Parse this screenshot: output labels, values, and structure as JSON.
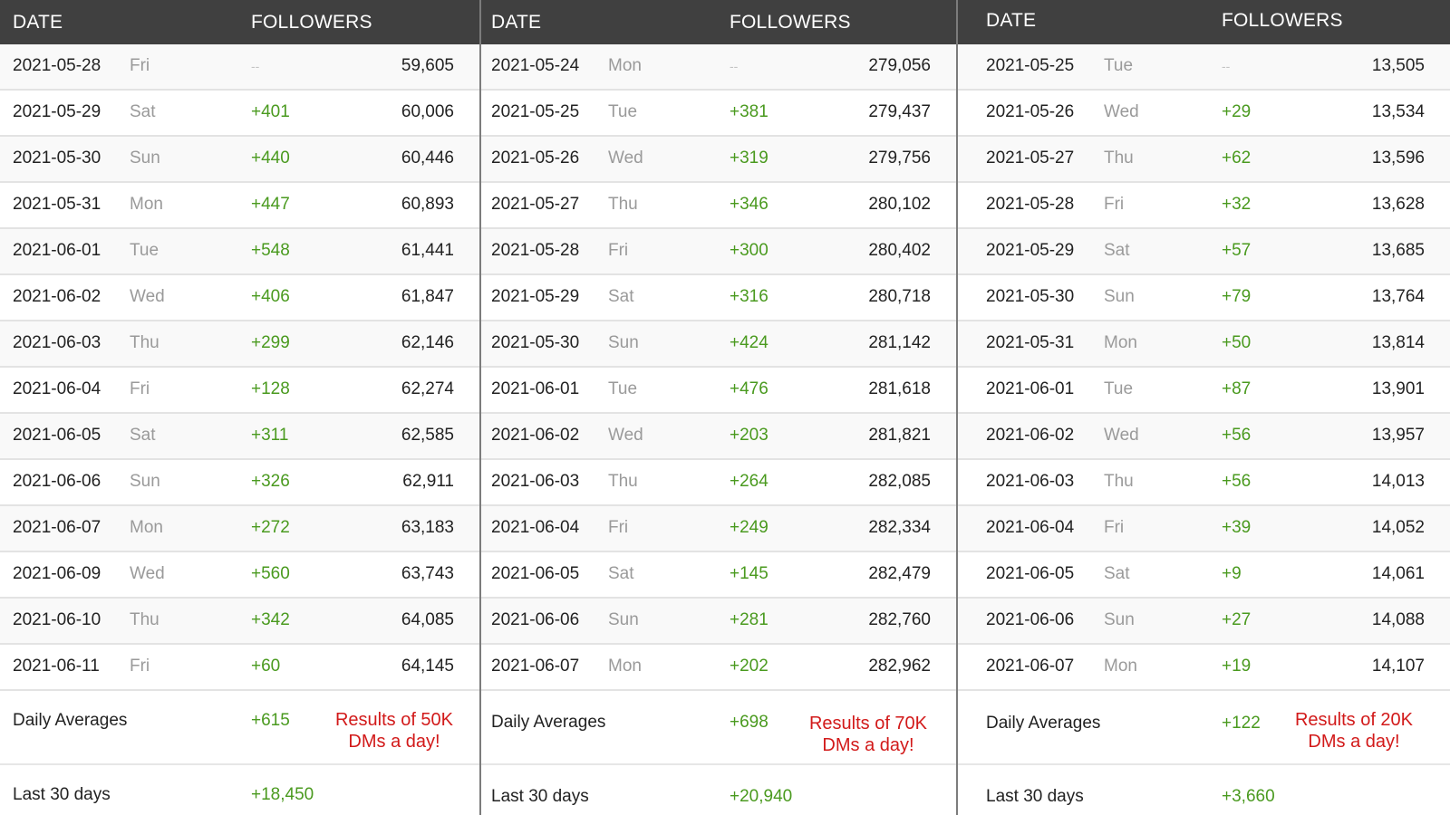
{
  "headers": {
    "date": "DATE",
    "followers": "FOLLOWERS"
  },
  "panels": [
    {
      "rows": [
        {
          "date": "2021-05-28",
          "day": "Fri",
          "change": "--",
          "total": "59,605"
        },
        {
          "date": "2021-05-29",
          "day": "Sat",
          "change": "+401",
          "total": "60,006"
        },
        {
          "date": "2021-05-30",
          "day": "Sun",
          "change": "+440",
          "total": "60,446"
        },
        {
          "date": "2021-05-31",
          "day": "Mon",
          "change": "+447",
          "total": "60,893"
        },
        {
          "date": "2021-06-01",
          "day": "Tue",
          "change": "+548",
          "total": "61,441"
        },
        {
          "date": "2021-06-02",
          "day": "Wed",
          "change": "+406",
          "total": "61,847"
        },
        {
          "date": "2021-06-03",
          "day": "Thu",
          "change": "+299",
          "total": "62,146"
        },
        {
          "date": "2021-06-04",
          "day": "Fri",
          "change": "+128",
          "total": "62,274"
        },
        {
          "date": "2021-06-05",
          "day": "Sat",
          "change": "+311",
          "total": "62,585"
        },
        {
          "date": "2021-06-06",
          "day": "Sun",
          "change": "+326",
          "total": "62,911"
        },
        {
          "date": "2021-06-07",
          "day": "Mon",
          "change": "+272",
          "total": "63,183"
        },
        {
          "date": "2021-06-09",
          "day": "Wed",
          "change": "+560",
          "total": "63,743"
        },
        {
          "date": "2021-06-10",
          "day": "Thu",
          "change": "+342",
          "total": "64,085"
        },
        {
          "date": "2021-06-11",
          "day": "Fri",
          "change": "+60",
          "total": "64,145"
        }
      ],
      "daily_averages_label": "Daily Averages",
      "daily_averages_value": "+615",
      "note_line1": "Results of 50K",
      "note_line2": "DMs a day!",
      "last30_label": "Last 30 days",
      "last30_value": "+18,450"
    },
    {
      "rows": [
        {
          "date": "2021-05-24",
          "day": "Mon",
          "change": "--",
          "total": "279,056"
        },
        {
          "date": "2021-05-25",
          "day": "Tue",
          "change": "+381",
          "total": "279,437"
        },
        {
          "date": "2021-05-26",
          "day": "Wed",
          "change": "+319",
          "total": "279,756"
        },
        {
          "date": "2021-05-27",
          "day": "Thu",
          "change": "+346",
          "total": "280,102"
        },
        {
          "date": "2021-05-28",
          "day": "Fri",
          "change": "+300",
          "total": "280,402"
        },
        {
          "date": "2021-05-29",
          "day": "Sat",
          "change": "+316",
          "total": "280,718"
        },
        {
          "date": "2021-05-30",
          "day": "Sun",
          "change": "+424",
          "total": "281,142"
        },
        {
          "date": "2021-06-01",
          "day": "Tue",
          "change": "+476",
          "total": "281,618"
        },
        {
          "date": "2021-06-02",
          "day": "Wed",
          "change": "+203",
          "total": "281,821"
        },
        {
          "date": "2021-06-03",
          "day": "Thu",
          "change": "+264",
          "total": "282,085"
        },
        {
          "date": "2021-06-04",
          "day": "Fri",
          "change": "+249",
          "total": "282,334"
        },
        {
          "date": "2021-06-05",
          "day": "Sat",
          "change": "+145",
          "total": "282,479"
        },
        {
          "date": "2021-06-06",
          "day": "Sun",
          "change": "+281",
          "total": "282,760"
        },
        {
          "date": "2021-06-07",
          "day": "Mon",
          "change": "+202",
          "total": "282,962"
        }
      ],
      "daily_averages_label": "Daily Averages",
      "daily_averages_value": "+698",
      "note_line1": "Results of 70K",
      "note_line2": "DMs a day!",
      "last30_label": "Last 30 days",
      "last30_value": "+20,940"
    },
    {
      "rows": [
        {
          "date": "2021-05-25",
          "day": "Tue",
          "change": "--",
          "total": "13,505"
        },
        {
          "date": "2021-05-26",
          "day": "Wed",
          "change": "+29",
          "total": "13,534"
        },
        {
          "date": "2021-05-27",
          "day": "Thu",
          "change": "+62",
          "total": "13,596"
        },
        {
          "date": "2021-05-28",
          "day": "Fri",
          "change": "+32",
          "total": "13,628"
        },
        {
          "date": "2021-05-29",
          "day": "Sat",
          "change": "+57",
          "total": "13,685"
        },
        {
          "date": "2021-05-30",
          "day": "Sun",
          "change": "+79",
          "total": "13,764"
        },
        {
          "date": "2021-05-31",
          "day": "Mon",
          "change": "+50",
          "total": "13,814"
        },
        {
          "date": "2021-06-01",
          "day": "Tue",
          "change": "+87",
          "total": "13,901"
        },
        {
          "date": "2021-06-02",
          "day": "Wed",
          "change": "+56",
          "total": "13,957"
        },
        {
          "date": "2021-06-03",
          "day": "Thu",
          "change": "+56",
          "total": "14,013"
        },
        {
          "date": "2021-06-04",
          "day": "Fri",
          "change": "+39",
          "total": "14,052"
        },
        {
          "date": "2021-06-05",
          "day": "Sat",
          "change": "+9",
          "total": "14,061"
        },
        {
          "date": "2021-06-06",
          "day": "Sun",
          "change": "+27",
          "total": "14,088"
        },
        {
          "date": "2021-06-07",
          "day": "Mon",
          "change": "+19",
          "total": "14,107"
        }
      ],
      "daily_averages_label": "Daily Averages",
      "daily_averages_value": "+122",
      "note_line1": "Results of 20K",
      "note_line2": "DMs a day!",
      "last30_label": "Last 30 days",
      "last30_value": "+3,660"
    }
  ]
}
